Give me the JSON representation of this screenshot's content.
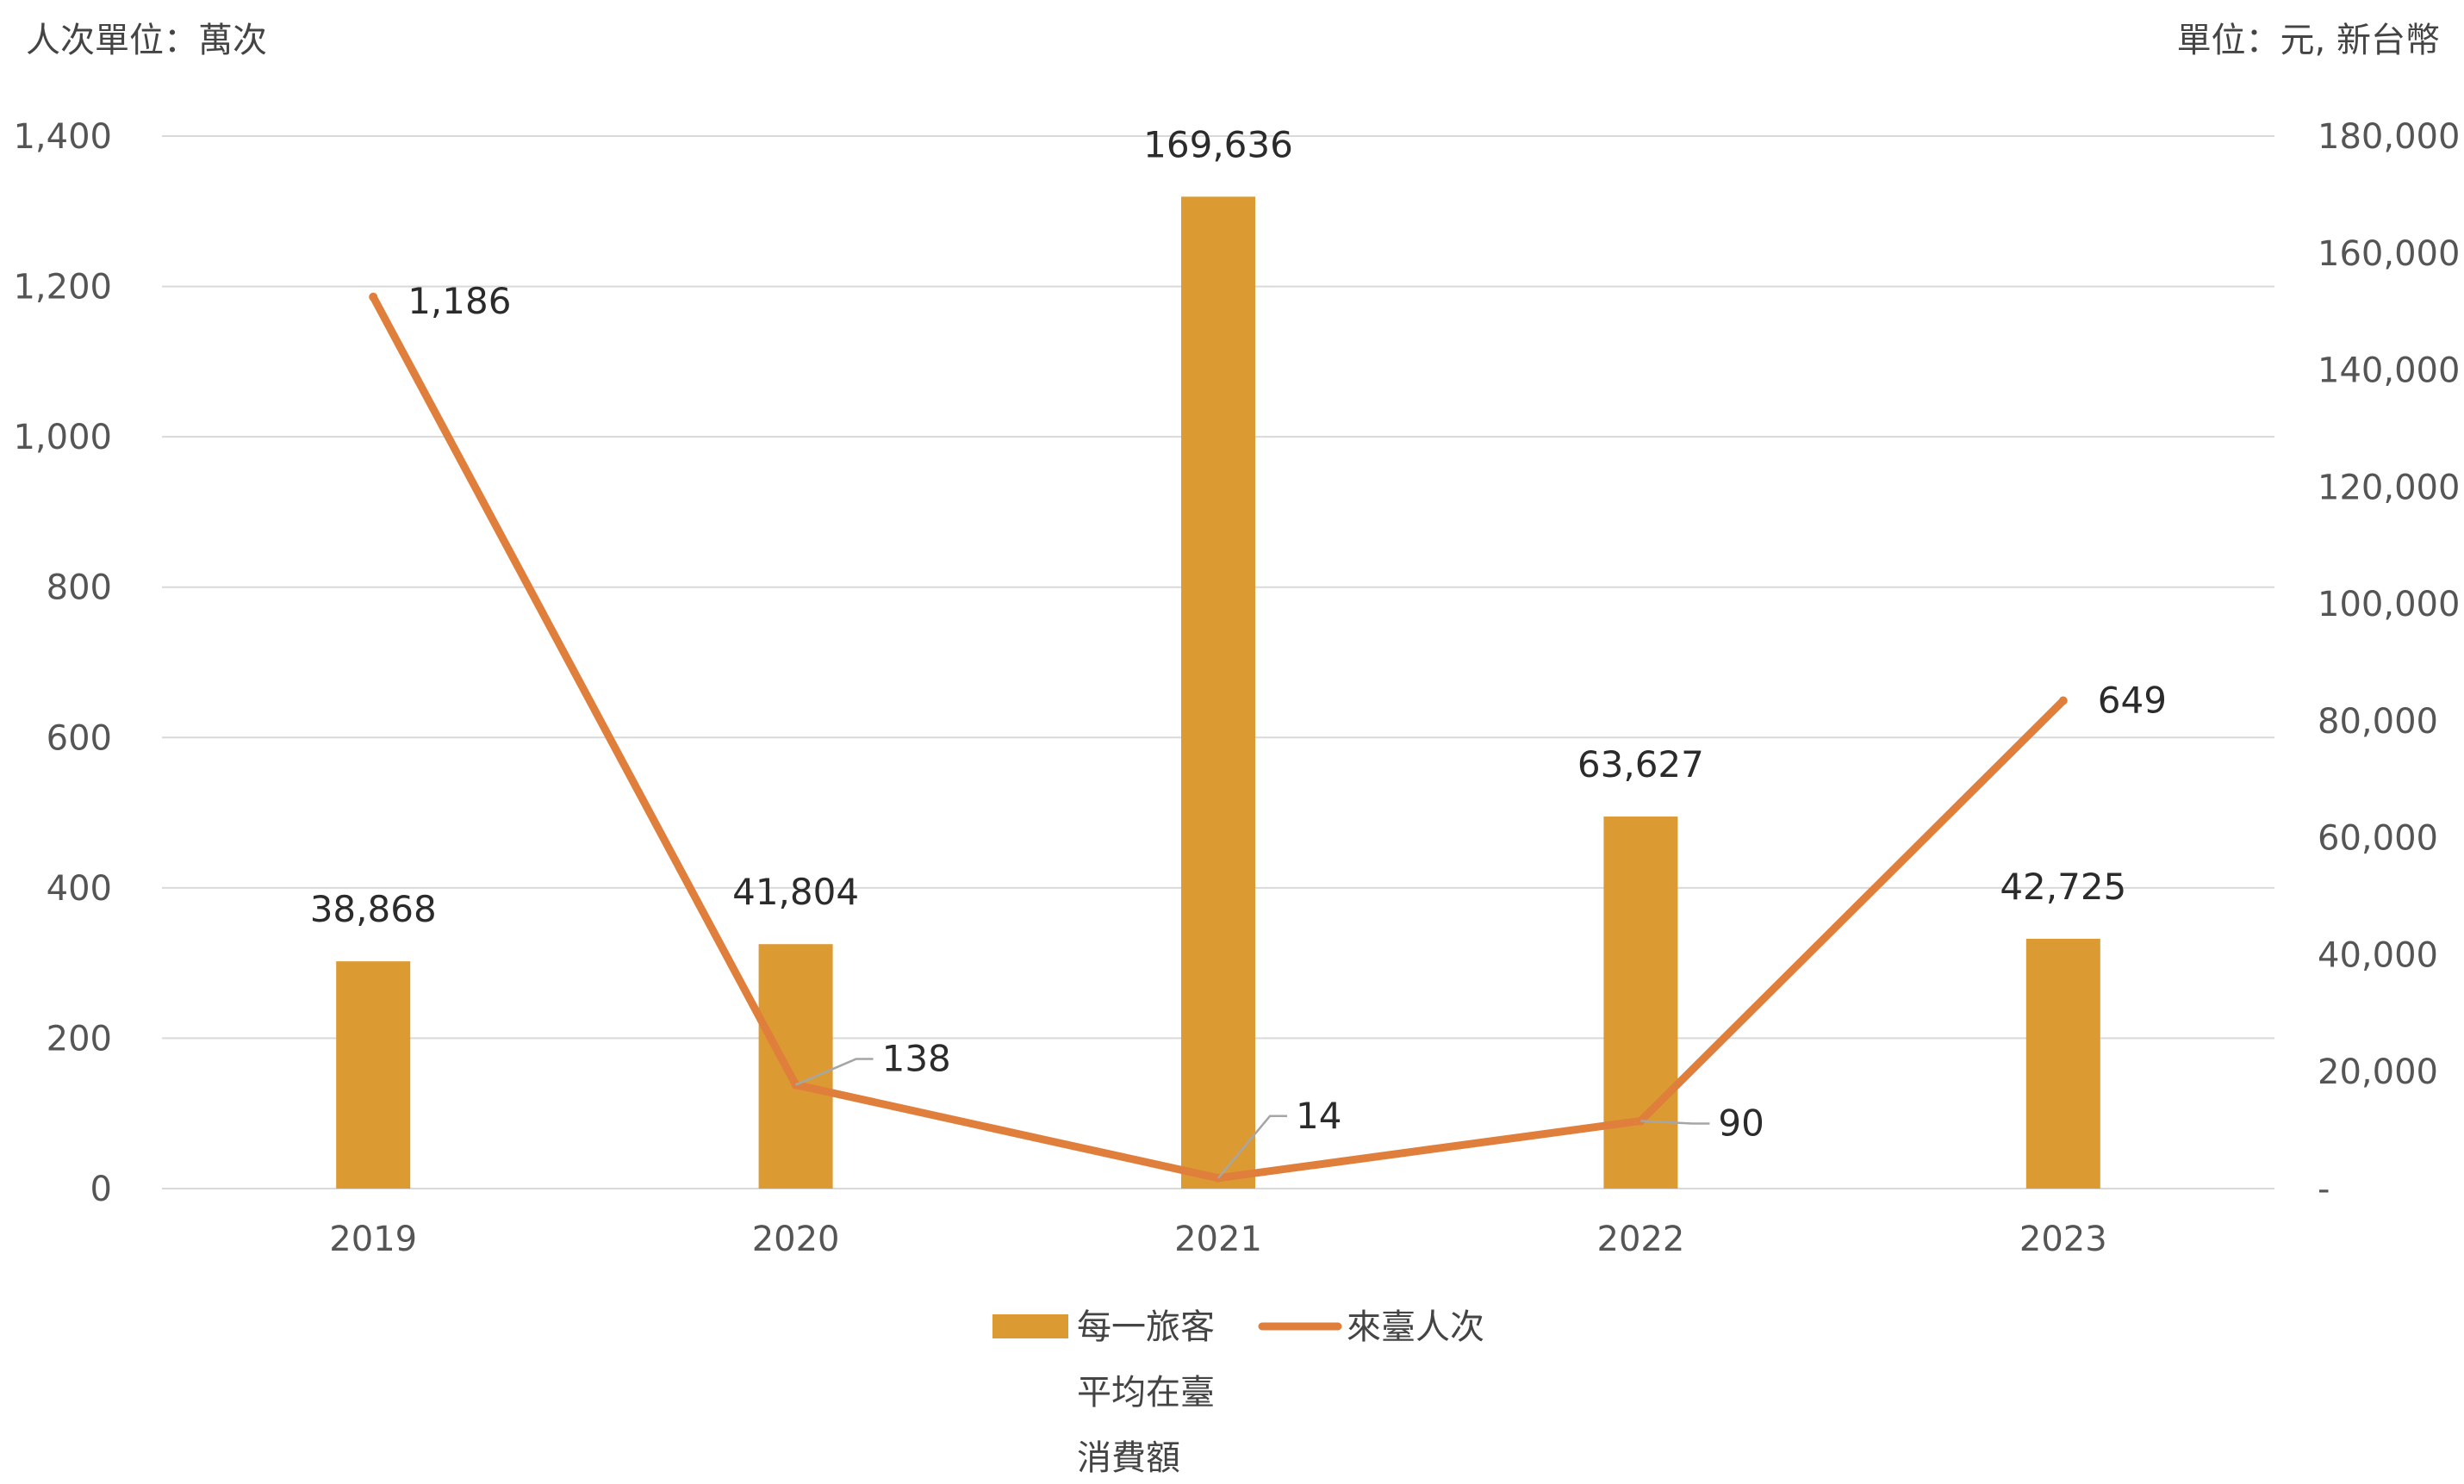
{
  "unit_left": "人次單位：萬次",
  "unit_right": "單位：元, 新台幣",
  "colors": {
    "bar": "#DC9A33",
    "line": "#E07E3C",
    "grid": "#d9d9d9",
    "leader": "#a6a6a6"
  },
  "chart_data": {
    "type": "bar+line",
    "categories": [
      "2019",
      "2020",
      "2021",
      "2022",
      "2023"
    ],
    "series": [
      {
        "name": "每一旅客平均在臺消費額",
        "legend_lines": [
          "每一旅客",
          "平均在臺",
          "消費額"
        ],
        "type": "bar",
        "axis": "right",
        "values": [
          38868,
          41804,
          169636,
          63627,
          42725
        ],
        "labels": [
          "38,868",
          "41,804",
          "169,636",
          "63,627",
          "42,725"
        ]
      },
      {
        "name": "來臺人次",
        "type": "line",
        "axis": "left",
        "values": [
          1186,
          138,
          14,
          90,
          649
        ],
        "labels": [
          "1,186",
          "138",
          "14",
          "90",
          "649"
        ]
      }
    ],
    "y_left": {
      "range": [
        0,
        1400
      ],
      "ticks": [
        0,
        200,
        400,
        600,
        800,
        1000,
        1200,
        1400
      ],
      "tick_labels": [
        "0",
        "200",
        "400",
        "600",
        "800",
        "1,000",
        "1,200",
        "1,400"
      ]
    },
    "y_right": {
      "range": [
        0,
        180000
      ],
      "ticks": [
        0,
        20000,
        40000,
        60000,
        80000,
        100000,
        120000,
        140000,
        160000,
        180000
      ],
      "tick_labels": [
        "-",
        "20,000",
        "40,000",
        "60,000",
        "80,000",
        "100,000",
        "120,000",
        "140,000",
        "160,000",
        "180,000"
      ]
    },
    "grid": true,
    "legend_position": "bottom"
  }
}
